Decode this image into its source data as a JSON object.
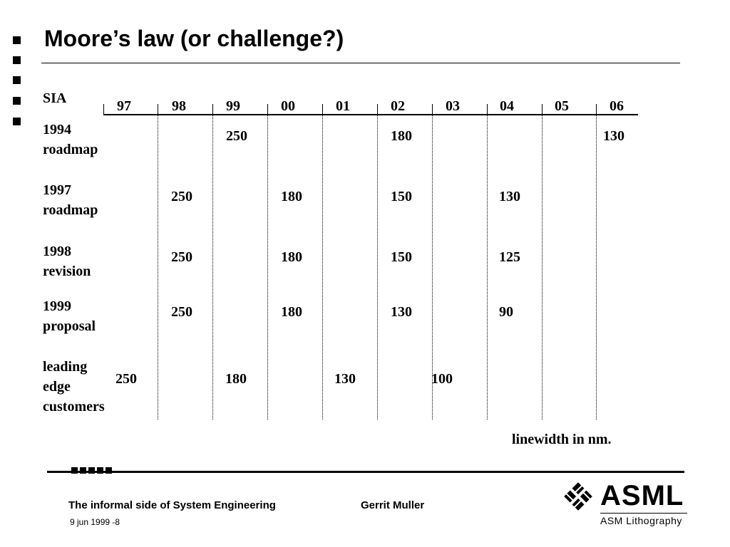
{
  "slide": {
    "title": "Moore’s law (or challenge?)",
    "bullet_count": 5
  },
  "table": {
    "corner_label": "SIA",
    "years": [
      "97",
      "98",
      "99",
      "00",
      "01",
      "02",
      "03",
      "04",
      "05",
      "06"
    ],
    "rows": [
      {
        "label_line1": "1994",
        "label_line2": "roadmap",
        "values": [
          {
            "year": "99",
            "value": "250"
          },
          {
            "year": "02",
            "value": "180"
          },
          {
            "year": "06",
            "value": "130"
          }
        ]
      },
      {
        "label_line1": "1997",
        "label_line2": "roadmap",
        "values": [
          {
            "year": "98",
            "value": "250"
          },
          {
            "year": "00",
            "value": "180"
          },
          {
            "year": "02",
            "value": "150"
          },
          {
            "year": "04",
            "value": "130"
          }
        ]
      },
      {
        "label_line1": "1998",
        "label_line2": "revision",
        "values": [
          {
            "year": "98",
            "value": "250"
          },
          {
            "year": "00",
            "value": "180"
          },
          {
            "year": "02",
            "value": "150"
          },
          {
            "year": "04",
            "value": "125"
          }
        ]
      },
      {
        "label_line1": "1999",
        "label_line2": "proposal",
        "values": [
          {
            "year": "98",
            "value": "250"
          },
          {
            "year": "00",
            "value": "180"
          },
          {
            "year": "02",
            "value": "130"
          },
          {
            "year": "04",
            "value": "90"
          }
        ]
      },
      {
        "label_line1": "leading",
        "label_line2": "edge",
        "label_line3": "customers",
        "values": [
          {
            "year": "97",
            "value": "250"
          },
          {
            "year": "99",
            "value": "180"
          },
          {
            "year": "01",
            "value": "130"
          },
          {
            "year": "03",
            "value": "100"
          }
        ]
      }
    ],
    "caption": "linewidth in nm."
  },
  "footer": {
    "presentation": "The informal side of System Engineering",
    "author": "Gerrit Muller",
    "date_page": "9 jun 1999 -8",
    "logo_word": "ASML",
    "logo_sub": "ASM Lithography",
    "logo_icon": "asml-diamond-mark"
  }
}
